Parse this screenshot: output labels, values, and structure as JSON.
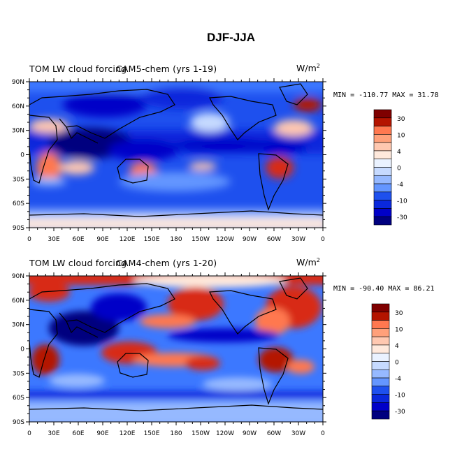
{
  "title": "DJF-JJA",
  "colors": {
    "palette": [
      "#00007f",
      "#0000c8",
      "#0a28dc",
      "#1e50ee",
      "#3c78ff",
      "#6496ff",
      "#96b9ff",
      "#c6daff",
      "#eaf2ff",
      "#ffe9dc",
      "#ffc8b0",
      "#ffa07a",
      "#ff7850",
      "#f0502a",
      "#d82a14",
      "#b41400",
      "#7f0000"
    ],
    "coast": "#000000"
  },
  "chart_data": [
    {
      "type": "heatmap",
      "left_title": "TOM LW cloud forcing",
      "model_title": "CAM5-chem (yrs 1-19)",
      "units_base": "W/m",
      "units_exp": "2",
      "minmax_label": "MIN = -110.77 MAX =  31.78",
      "min": -110.77,
      "max": 31.78,
      "x_ticks": [
        "0",
        "30E",
        "60E",
        "90E",
        "120E",
        "150E",
        "180",
        "150W",
        "120W",
        "90W",
        "60W",
        "30W",
        "0"
      ],
      "y_ticks": [
        "90N",
        "60N",
        "30N",
        "0",
        "30S",
        "60S",
        "90S"
      ],
      "colorbar_labels": [
        "30",
        "10",
        "4",
        "0",
        "-4",
        "-10",
        "-30"
      ],
      "colorbar_levels": 14,
      "xlim": [
        0,
        360
      ],
      "ylim": [
        -90,
        90
      ]
    },
    {
      "type": "heatmap",
      "left_title": "TOM LW cloud forcing",
      "model_title": "CAM4-chem (yrs 1-20)",
      "units_base": "W/m",
      "units_exp": "2",
      "minmax_label": "MIN = -90.40 MAX =  86.21",
      "min": -90.4,
      "max": 86.21,
      "x_ticks": [
        "0",
        "30E",
        "60E",
        "90E",
        "120E",
        "150E",
        "180",
        "150W",
        "120W",
        "90W",
        "60W",
        "30W",
        "0"
      ],
      "y_ticks": [
        "90N",
        "60N",
        "30N",
        "0",
        "30S",
        "60S",
        "90S"
      ],
      "colorbar_labels": [
        "30",
        "10",
        "4",
        "0",
        "-4",
        "-10",
        "-30"
      ],
      "colorbar_levels": 14,
      "xlim": [
        0,
        360
      ],
      "ylim": [
        -90,
        90
      ]
    }
  ]
}
